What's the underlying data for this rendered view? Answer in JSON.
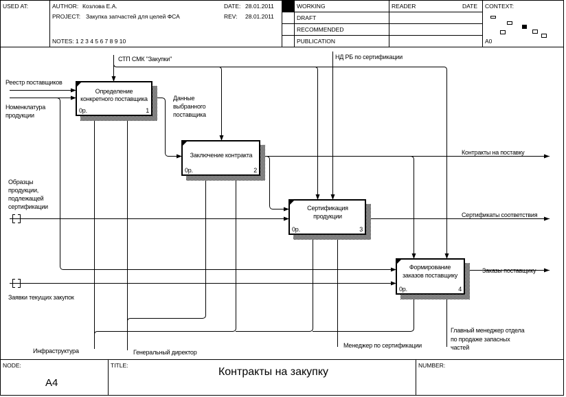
{
  "header": {
    "used_at": "USED AT:",
    "author_label": "AUTHOR:",
    "author": "Козлова Е.А.",
    "project_label": "PROJECT:",
    "project": "Закупка запчастей для целей ФСА",
    "date_label": "DATE:",
    "date": "28.01.2011",
    "rev_label": "REV:",
    "rev": "28.01.2011",
    "notes": "NOTES:  1  2  3  4  5  6  7  8  9  10",
    "status": [
      "WORKING",
      "DRAFT",
      "RECOMMENDED",
      "PUBLICATION"
    ],
    "reader": "READER",
    "reader_date": "DATE",
    "context": "CONTEXT:",
    "context_node": "A0"
  },
  "boxes": [
    {
      "title1": "Определение",
      "title2": "конкретного поставщика",
      "cost": "0р.",
      "num": "1"
    },
    {
      "title1": "Заключение контракта",
      "title2": "",
      "cost": "0р.",
      "num": "2"
    },
    {
      "title1": "Сертификация",
      "title2": "продукции",
      "cost": "0р.",
      "num": "3"
    },
    {
      "title1": "Формирование",
      "title2": "заказов поставщику",
      "cost": "0р.",
      "num": "4"
    }
  ],
  "arrows": {
    "stp": "СТП СМК \"Закупки\"",
    "ndrb": "НД РБ по сертификации",
    "reestr": "Реестр поставщиков",
    "nomenkl": [
      "Номенклатура",
      "продукции"
    ],
    "dannye": [
      "Данные",
      "выбранного",
      "поставщика"
    ],
    "obrazcy": [
      "Образцы",
      "продукции,",
      "подлежащей",
      "сертификации"
    ],
    "zayavki": "Заявки текущих закупок",
    "kontrakty": "Контракты на поставку",
    "sertifikaty": "Сертификаты соответствия",
    "zakazy": "Заказы поставщику",
    "infra": "Инфраструктура",
    "gendir": "Генеральный директор",
    "mensert": "Менеджер по сертификации",
    "glavmen": [
      "Главный менеджер отдела",
      "по продаже запасных",
      "частей"
    ]
  },
  "footer": {
    "node_label": "NODE:",
    "node": "A4",
    "title_label": "TITLE:",
    "title": "Контракты на закупку",
    "number_label": "NUMBER:"
  }
}
